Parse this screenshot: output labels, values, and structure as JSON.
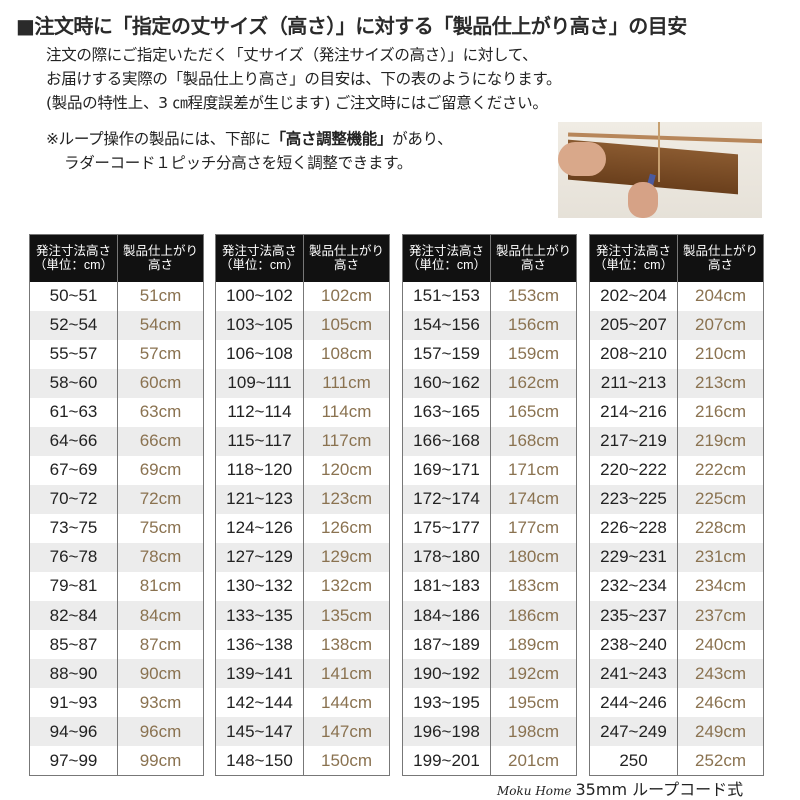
{
  "title": "■注文時に「指定の丈サイズ（高さ）」に対する「製品仕上がり高さ」の目安",
  "intro": [
    "注文の際にご指定いただく「丈サイズ（発注サイズの高さ）」に対して、",
    "お届けする実際の「製品仕上り高さ」の目安は、下の表のようになります。",
    "(製品の特性上、3 ㎝程度誤差が生じます) ご注文時にはご留意ください。"
  ],
  "note": {
    "prefix": "※ループ操作の製品には、下部に",
    "bold": "「高さ調整機能」",
    "suffix": "があり、",
    "line2": "ラダーコード１ピッチ分高さを短く調整できます。"
  },
  "table_headers": {
    "order_1": "発注寸法高さ",
    "order_2": "（単位：cm）",
    "result_1": "製品仕上がり",
    "result_2": "高さ"
  },
  "colors": {
    "header_bg": "#111111",
    "value_text": "#8a7250",
    "stripe": "#ececec"
  },
  "tables": [
    [
      [
        "50~51",
        "51cm"
      ],
      [
        "52~54",
        "54cm"
      ],
      [
        "55~57",
        "57cm"
      ],
      [
        "58~60",
        "60cm"
      ],
      [
        "61~63",
        "63cm"
      ],
      [
        "64~66",
        "66cm"
      ],
      [
        "67~69",
        "69cm"
      ],
      [
        "70~72",
        "72cm"
      ],
      [
        "73~75",
        "75cm"
      ],
      [
        "76~78",
        "78cm"
      ],
      [
        "79~81",
        "81cm"
      ],
      [
        "82~84",
        "84cm"
      ],
      [
        "85~87",
        "87cm"
      ],
      [
        "88~90",
        "90cm"
      ],
      [
        "91~93",
        "93cm"
      ],
      [
        "94~96",
        "96cm"
      ],
      [
        "97~99",
        "99cm"
      ]
    ],
    [
      [
        "100~102",
        "102cm"
      ],
      [
        "103~105",
        "105cm"
      ],
      [
        "106~108",
        "108cm"
      ],
      [
        "109~111",
        "111cm"
      ],
      [
        "112~114",
        "114cm"
      ],
      [
        "115~117",
        "117cm"
      ],
      [
        "118~120",
        "120cm"
      ],
      [
        "121~123",
        "123cm"
      ],
      [
        "124~126",
        "126cm"
      ],
      [
        "127~129",
        "129cm"
      ],
      [
        "130~132",
        "132cm"
      ],
      [
        "133~135",
        "135cm"
      ],
      [
        "136~138",
        "138cm"
      ],
      [
        "139~141",
        "141cm"
      ],
      [
        "142~144",
        "144cm"
      ],
      [
        "145~147",
        "147cm"
      ],
      [
        "148~150",
        "150cm"
      ]
    ],
    [
      [
        "151~153",
        "153cm"
      ],
      [
        "154~156",
        "156cm"
      ],
      [
        "157~159",
        "159cm"
      ],
      [
        "160~162",
        "162cm"
      ],
      [
        "163~165",
        "165cm"
      ],
      [
        "166~168",
        "168cm"
      ],
      [
        "169~171",
        "171cm"
      ],
      [
        "172~174",
        "174cm"
      ],
      [
        "175~177",
        "177cm"
      ],
      [
        "178~180",
        "180cm"
      ],
      [
        "181~183",
        "183cm"
      ],
      [
        "184~186",
        "186cm"
      ],
      [
        "187~189",
        "189cm"
      ],
      [
        "190~192",
        "192cm"
      ],
      [
        "193~195",
        "195cm"
      ],
      [
        "196~198",
        "198cm"
      ],
      [
        "199~201",
        "201cm"
      ]
    ],
    [
      [
        "202~204",
        "204cm"
      ],
      [
        "205~207",
        "207cm"
      ],
      [
        "208~210",
        "210cm"
      ],
      [
        "211~213",
        "213cm"
      ],
      [
        "214~216",
        "216cm"
      ],
      [
        "217~219",
        "219cm"
      ],
      [
        "220~222",
        "222cm"
      ],
      [
        "223~225",
        "225cm"
      ],
      [
        "226~228",
        "228cm"
      ],
      [
        "229~231",
        "231cm"
      ],
      [
        "232~234",
        "234cm"
      ],
      [
        "235~237",
        "237cm"
      ],
      [
        "238~240",
        "240cm"
      ],
      [
        "241~243",
        "243cm"
      ],
      [
        "244~246",
        "246cm"
      ],
      [
        "247~249",
        "249cm"
      ],
      [
        "250",
        "252cm"
      ]
    ]
  ],
  "footer": {
    "brand": "Moku Home",
    "text": "35mm ループコード式"
  }
}
